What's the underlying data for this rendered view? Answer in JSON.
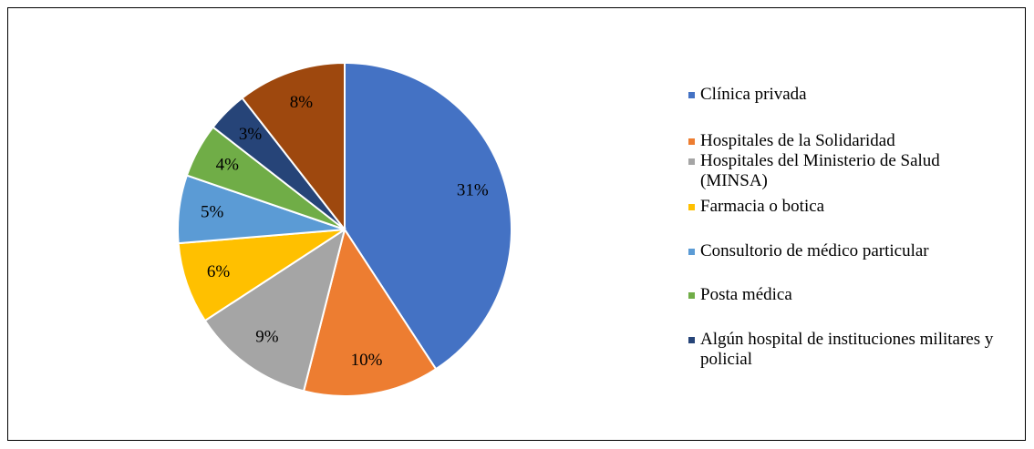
{
  "chart_data": {
    "type": "pie",
    "categories": [
      "Clínica privada",
      "Hospitales de la Solidaridad",
      "Hospitales del Ministerio de Salud (MINSA)",
      "Farmacia o botica",
      "Consultorio de médico particular",
      "Posta médica",
      "Algún hospital de instituciones militares y policial",
      null
    ],
    "values": [
      31,
      10,
      9,
      6,
      5,
      4,
      3,
      8
    ],
    "value_labels": [
      "31%",
      "10%",
      "9%",
      "6%",
      "5%",
      "4%",
      "3%",
      "8%"
    ],
    "colors": [
      "#4472c4",
      "#ed7d31",
      "#a5a5a5",
      "#ffc000",
      "#5b9bd5",
      "#70ad47",
      "#264478",
      "#9e480e"
    ],
    "legend": "right"
  }
}
